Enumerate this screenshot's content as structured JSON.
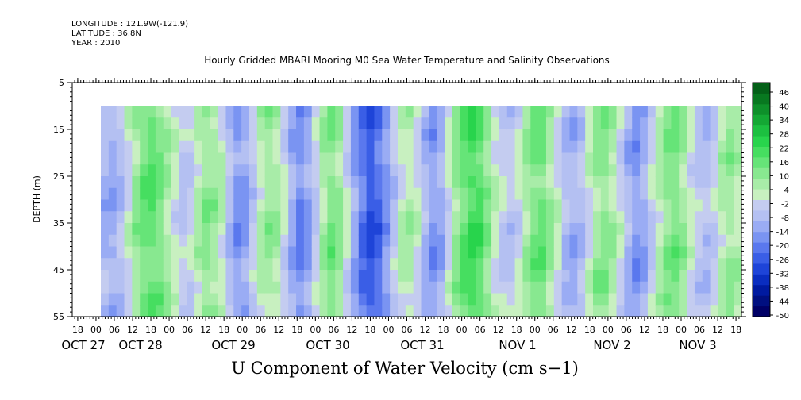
{
  "header": {
    "longitude": "LONGITUDE : 121.9W(-121.9)",
    "latitude": "LATITUDE : 36.8N",
    "year": "YEAR : 2010"
  },
  "chart_data": {
    "type": "heatmap",
    "title": "Hourly Gridded MBARI Mooring M0 Sea Water Temperature and Salinity Observations",
    "xlabel": "U Component of Water Velocity (cm s−1)",
    "ylabel": "DEPTH (m)",
    "y_ticks": [
      5,
      15,
      25,
      35,
      45,
      55
    ],
    "ylim": [
      5,
      55
    ],
    "depth_range_with_data": [
      10,
      55
    ],
    "x_hour_ticks": [
      "18",
      "00",
      "06",
      "12",
      "18",
      "00",
      "06",
      "12",
      "18",
      "00",
      "06",
      "12",
      "18",
      "00",
      "06",
      "12",
      "18",
      "00",
      "06",
      "12",
      "18",
      "00",
      "06",
      "12",
      "18",
      "00",
      "06",
      "12",
      "18",
      "00",
      "06",
      "12",
      "18",
      "00",
      "06",
      "12",
      "18"
    ],
    "x_date_labels": [
      "OCT 27",
      "OCT 28",
      "OCT 29",
      "OCT 30",
      "OCT 31",
      "NOV  1",
      "NOV  2",
      "NOV  3"
    ],
    "colorbar_labels": [
      "46",
      "40",
      "34",
      "28",
      "22",
      "16",
      "10",
      "4",
      "-2",
      "-8",
      "-14",
      "-20",
      "-26",
      "-32",
      "-38",
      "-44",
      "-50"
    ],
    "colorbar_range": [
      -50,
      52
    ],
    "colorbar_colors": [
      "#000066",
      "#000f80",
      "#001aa0",
      "#0a2dc0",
      "#1e44d8",
      "#3a5ee6",
      "#5a78ee",
      "#7a94f2",
      "#9aacf4",
      "#b4c0f2",
      "#c4ccf0",
      "#c8f0c0",
      "#a8eca8",
      "#88e890",
      "#66e478",
      "#46de60",
      "#28d44c",
      "#1cc040",
      "#14a834",
      "#0e902a",
      "#087820",
      "#046018"
    ],
    "u_profile_by_hour": [
      -8,
      -10,
      -6,
      2,
      10,
      16,
      18,
      14,
      8,
      2,
      -4,
      -2,
      6,
      12,
      10,
      4,
      -6,
      -14,
      -12,
      -4,
      6,
      10,
      8,
      0,
      -10,
      -16,
      -12,
      -2,
      8,
      14,
      10,
      0,
      -12,
      -20,
      -26,
      -22,
      -14,
      -4,
      4,
      6,
      2,
      -8,
      -14,
      -10,
      0,
      10,
      18,
      22,
      20,
      12,
      4,
      -2,
      -4,
      0,
      8,
      14,
      16,
      10,
      2,
      -6,
      -10,
      -6,
      2,
      10,
      12,
      8,
      0,
      -8,
      -14,
      -10,
      -2,
      6,
      12,
      14,
      10,
      2,
      -4,
      -6,
      -2,
      6,
      10,
      6
    ]
  }
}
